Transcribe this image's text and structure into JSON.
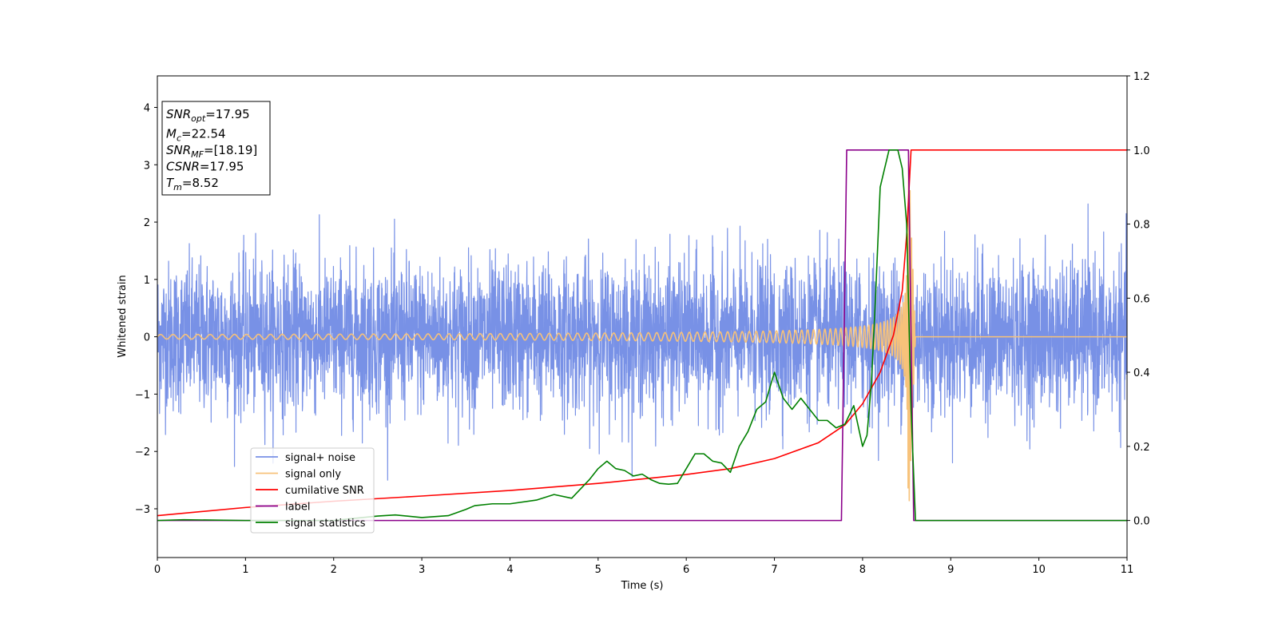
{
  "chart_data": {
    "type": "line",
    "xlabel": "Time (s)",
    "ylabel": "Whitened strain",
    "xlim": [
      0,
      11
    ],
    "ylim_left": [
      -3.85,
      4.55
    ],
    "ylim_right": [
      -0.1,
      1.2
    ],
    "x_ticks": [
      "0",
      "1",
      "2",
      "3",
      "4",
      "5",
      "6",
      "7",
      "8",
      "9",
      "10",
      "11"
    ],
    "y_ticks_left": [
      "−3",
      "−2",
      "−1",
      "0",
      "1",
      "2",
      "3",
      "4"
    ],
    "y_ticks_right": [
      "0.0",
      "0.2",
      "0.4",
      "0.6",
      "0.8",
      "1.0",
      "1.2"
    ],
    "grid": false,
    "legend_position": "lower-left",
    "info_box": [
      {
        "main": "SNR",
        "sub": "opt",
        "value": "=17.95"
      },
      {
        "main": "M",
        "sub": "c",
        "value": "=22.54"
      },
      {
        "main": "SNR",
        "sub": "MF",
        "value": "=[18.19]"
      },
      {
        "main": "CSNR",
        "sub": "",
        "value": "=17.95"
      },
      {
        "main": "T",
        "sub": "m",
        "value": "=8.52"
      }
    ],
    "series": [
      {
        "name": "signal+ noise",
        "axis": "left",
        "color": "#7891e6",
        "kind": "noise",
        "noise_sigma": 0.65,
        "noise_peak": 2.5,
        "x_range": [
          0,
          11
        ]
      },
      {
        "name": "signal only",
        "axis": "left",
        "color": "#f7c27a",
        "kind": "chirp",
        "merger_time": 8.52,
        "ringdown_end": 8.6,
        "amplitude_start": 0.04,
        "amplitude_peak": 3.3
      },
      {
        "name": "cumilative SNR",
        "axis": "right",
        "color": "#ff0000",
        "x": [
          0,
          1,
          2,
          3,
          4,
          5,
          6,
          6.5,
          7,
          7.5,
          7.8,
          8.0,
          8.2,
          8.35,
          8.45,
          8.5,
          8.55,
          9,
          10,
          11
        ],
        "y": [
          0.013,
          0.035,
          0.052,
          0.066,
          0.081,
          0.1,
          0.124,
          0.14,
          0.167,
          0.21,
          0.258,
          0.315,
          0.4,
          0.5,
          0.62,
          0.77,
          1.0,
          1.0,
          1.0,
          1.0
        ]
      },
      {
        "name": "label",
        "axis": "right",
        "color": "#8b008b",
        "x": [
          0,
          7.76,
          7.82,
          8.52,
          8.58,
          11
        ],
        "y": [
          0.0,
          0.0,
          1.0,
          1.0,
          0.0,
          0.0
        ]
      },
      {
        "name": "signal statistics",
        "axis": "right",
        "color": "#008000",
        "x": [
          0,
          0.3,
          1,
          2,
          2.2,
          2.5,
          2.7,
          3,
          3.3,
          3.5,
          3.6,
          3.8,
          4,
          4.3,
          4.5,
          4.7,
          4.9,
          5.0,
          5.1,
          5.2,
          5.3,
          5.4,
          5.5,
          5.6,
          5.7,
          5.8,
          5.9,
          6.0,
          6.1,
          6.2,
          6.3,
          6.4,
          6.5,
          6.6,
          6.7,
          6.8,
          6.9,
          7.0,
          7.1,
          7.2,
          7.3,
          7.4,
          7.5,
          7.6,
          7.7,
          7.8,
          7.9,
          8.0,
          8.05,
          8.1,
          8.15,
          8.2,
          8.25,
          8.3,
          8.4,
          8.45,
          8.5,
          8.55,
          8.6,
          9,
          10,
          11
        ],
        "y": [
          0.0,
          0.002,
          0.0,
          0.0,
          0.005,
          0.012,
          0.015,
          0.008,
          0.013,
          0.03,
          0.04,
          0.045,
          0.045,
          0.055,
          0.07,
          0.06,
          0.11,
          0.14,
          0.16,
          0.14,
          0.135,
          0.12,
          0.125,
          0.11,
          0.1,
          0.098,
          0.1,
          0.14,
          0.18,
          0.18,
          0.16,
          0.155,
          0.13,
          0.2,
          0.24,
          0.3,
          0.32,
          0.4,
          0.33,
          0.3,
          0.33,
          0.3,
          0.27,
          0.27,
          0.25,
          0.26,
          0.31,
          0.2,
          0.23,
          0.37,
          0.62,
          0.9,
          0.95,
          1.0,
          1.0,
          0.95,
          0.8,
          0.3,
          0.0,
          0.0,
          0.0,
          0.0
        ]
      }
    ]
  }
}
